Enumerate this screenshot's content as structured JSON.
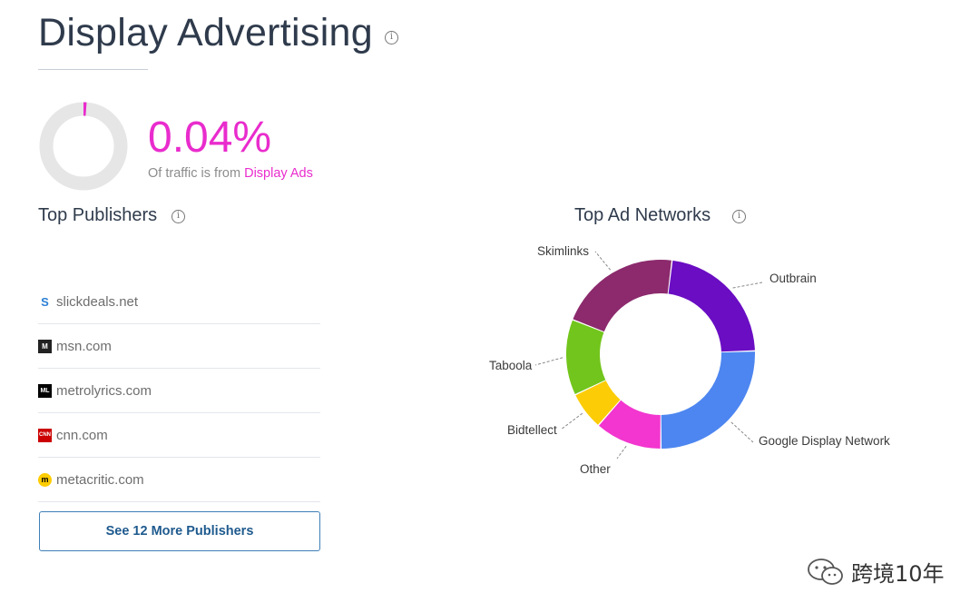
{
  "page": {
    "title": "Display Advertising",
    "info_glyph": "i"
  },
  "traffic_share": {
    "value": "0.04%",
    "fraction": 0.0004,
    "caption_prefix": "Of traffic is from ",
    "caption_highlight": "Display Ads",
    "accent_color": "#e92ccd",
    "track_color": "#e6e6e6"
  },
  "publishers": {
    "title": "Top Publishers",
    "items": [
      {
        "name": "slickdeals.net",
        "icon": "slickdeals-favicon",
        "glyph": "S"
      },
      {
        "name": "msn.com",
        "icon": "msn-favicon",
        "glyph": "M"
      },
      {
        "name": "metrolyrics.com",
        "icon": "metrolyrics-favicon",
        "glyph": "ML"
      },
      {
        "name": "cnn.com",
        "icon": "cnn-favicon",
        "glyph": "CNN"
      },
      {
        "name": "metacritic.com",
        "icon": "metacritic-favicon",
        "glyph": "m"
      }
    ],
    "more_button": "See 12 More Publishers"
  },
  "ad_networks": {
    "title": "Top Ad Networks",
    "chart_data": {
      "type": "pie",
      "segments": [
        {
          "name": "Outbrain",
          "value": 22.5,
          "color": "#6a0dc3",
          "label_color": "#3a3a3a"
        },
        {
          "name": "Google Display Network",
          "value": 25.5,
          "color": "#4d86f0",
          "label_color": "#3a3a3a"
        },
        {
          "name": "Other",
          "value": 11.5,
          "color": "#f236cf",
          "label_color": "#3c8fd6"
        },
        {
          "name": "Bidtellect",
          "value": 6.5,
          "color": "#fccc07",
          "label_color": "#3a3a3a"
        },
        {
          "name": "Taboola",
          "value": 13,
          "color": "#72c51c",
          "label_color": "#3a3a3a"
        },
        {
          "name": "Skimlinks",
          "value": 21,
          "color": "#8c2a6d",
          "label_color": "#3a3a3a"
        }
      ]
    }
  },
  "watermark": {
    "text": "跨境10年",
    "icon": "wechat-icon"
  }
}
